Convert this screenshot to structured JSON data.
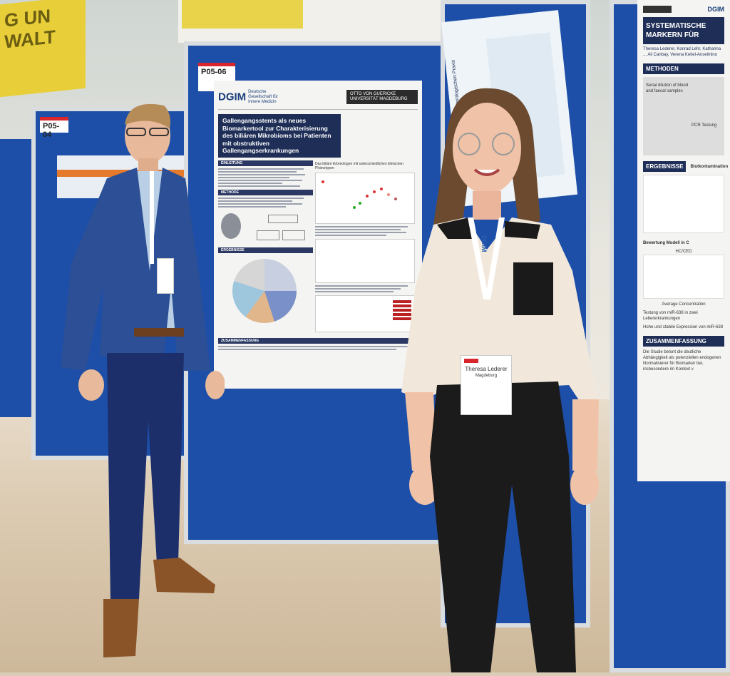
{
  "scene": {
    "sign_text": "G UN\nWALT",
    "colors": {
      "board_blue": "#1d4fa8",
      "poster_navy": "#1e2e56",
      "tag_red": "#d8262c",
      "floor": "#dccbb2",
      "suit_blue": "#2c4f95"
    }
  },
  "boards": {
    "left_tag": "P05-04",
    "center_tag": "P05-06"
  },
  "poster_main": {
    "logo_text": "DGIM",
    "logo_sub": "Deutsche Gesellschaft für Innere Medizin",
    "university": "OTTO VON GUERICKE UNIVERSITÄT MAGDEBURG",
    "title": "Gallengangsstents als neues Biomarkertool zur Charakterisierung des biliären Mikrobioms bei Patienten mit obstruktiven Gallengangserkrankungen",
    "sections": [
      "EINLEITUNG",
      "METHODE",
      "ERGEBNISSE",
      "ZUSAMMENFASSUNG"
    ],
    "figure_heading": "Das biliäre Erbreologen mit unterschiedlichen klinischen Phänotypen"
  },
  "poster_mid": {
    "title": "Erfahrungen mit der gastroenterologischen Praxis"
  },
  "poster_right": {
    "logo": "DGIM",
    "title": "SYSTEMATISCHE MARKERN FÜR",
    "authors": "Theresa Lederer, Konrad Lehr, Katharina ... Ali Canbay, Verena Keitel-Anselmino",
    "sections": [
      "METHODEN",
      "ERGEBNISSE",
      "ZUSAMMENFASSUNG"
    ],
    "results_sub": "Blutkontamination",
    "method_labels": [
      "Serial dilution of blood and faecal samples",
      "PCR Testung"
    ],
    "model_heading": "Bewertung Modell in C",
    "chart_label": "HC/CED",
    "chart_xlabel": "Average Concentration",
    "notes": [
      "Testung von miR-638 in zwei Lebererkrankungen",
      "Hohe und stabile Expression von miR-638"
    ],
    "summary": "Die Studie betont die deutliche Abhängigkeit als potenziellen endogenen Normalisierer für Biomarker bei, insbesondere im Kontext v"
  },
  "people": {
    "woman_badge_name": "Theresa Lederer",
    "woman_badge_place": "Magdeburg",
    "lanyard_text": "DGIM"
  }
}
